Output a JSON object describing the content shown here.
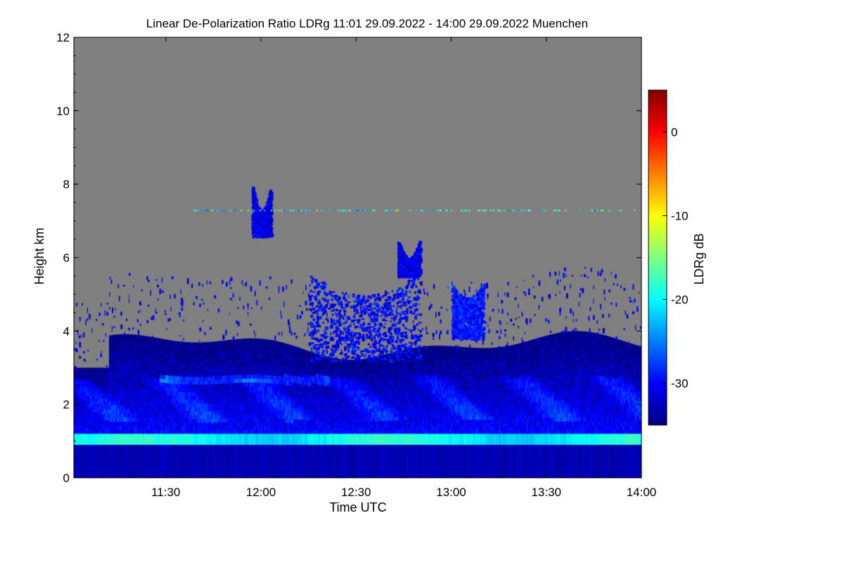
{
  "chart_data": {
    "type": "heatmap",
    "title": "Linear De-Polarization Ratio LDRg   11:01 29.09.2022 - 14:00 29.09.2022 Muenchen",
    "xlabel": "Time UTC",
    "ylabel": "Height km",
    "x_range": [
      "11:01",
      "14:00"
    ],
    "y_range": [
      0,
      12
    ],
    "x_ticks": [
      {
        "value": "11:30",
        "label": "11:30"
      },
      {
        "value": "12:00",
        "label": "12:00"
      },
      {
        "value": "12:30",
        "label": "12:30"
      },
      {
        "value": "13:00",
        "label": "13:00"
      },
      {
        "value": "13:30",
        "label": "13:30"
      },
      {
        "value": "14:00",
        "label": "14:00"
      }
    ],
    "y_ticks": [
      {
        "value": 0,
        "label": "0"
      },
      {
        "value": 2,
        "label": "2"
      },
      {
        "value": 4,
        "label": "4"
      },
      {
        "value": 6,
        "label": "6"
      },
      {
        "value": 8,
        "label": "8"
      },
      {
        "value": 10,
        "label": "10"
      },
      {
        "value": 12,
        "label": "12"
      }
    ],
    "colorbar": {
      "label": "LDRg dB",
      "range": [
        -35,
        5
      ],
      "ticks": [
        {
          "value": 0,
          "label": "0"
        },
        {
          "value": -10,
          "label": "-10"
        },
        {
          "value": -20,
          "label": "-20"
        },
        {
          "value": -30,
          "label": "-30"
        }
      ],
      "colormap": [
        "#00007f",
        "#0000ff",
        "#007fff",
        "#00ffff",
        "#7fff7f",
        "#ffff00",
        "#ff7f00",
        "#ff0000",
        "#7f0000"
      ]
    },
    "no_signal_color": "#808080",
    "features": {
      "strong_layer": {
        "height_km": [
          0.9,
          1.2
        ],
        "ldr_db": -20
      },
      "boundary_layer": {
        "height_km": [
          0,
          0.9
        ],
        "ldr_db": -33
      },
      "aerosol_layer": {
        "height_km": [
          1.2,
          4.0
        ],
        "ldr_db": -28
      },
      "cloud_12_15": {
        "time": [
          "12:15",
          "12:50"
        ],
        "height_km": [
          3.2,
          5.6
        ],
        "ldr_db": -30
      },
      "cloud_13_05": {
        "time": [
          "13:00",
          "13:10"
        ],
        "height_km": [
          3.8,
          5.3
        ],
        "ldr_db": -29
      },
      "cirrus_12_45": {
        "time": [
          "12:43",
          "12:50"
        ],
        "height_km": [
          5.5,
          6.5
        ],
        "ldr_db": -31
      },
      "cirrus_12_00": {
        "time": [
          "11:57",
          "12:03"
        ],
        "height_km": [
          6.6,
          8.0
        ],
        "ldr_db": -31
      },
      "sparse_band": {
        "height_km": 7.3,
        "ldr_db": -20
      }
    }
  }
}
